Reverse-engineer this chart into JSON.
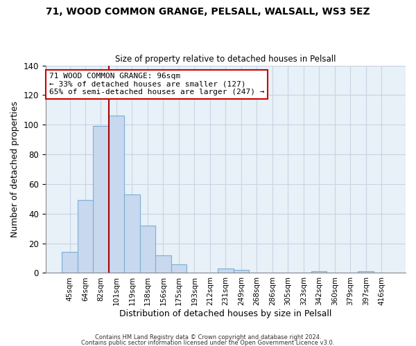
{
  "title": "71, WOOD COMMON GRANGE, PELSALL, WALSALL, WS3 5EZ",
  "subtitle": "Size of property relative to detached houses in Pelsall",
  "xlabel": "Distribution of detached houses by size in Pelsall",
  "ylabel": "Number of detached properties",
  "categories": [
    "45sqm",
    "64sqm",
    "82sqm",
    "101sqm",
    "119sqm",
    "138sqm",
    "156sqm",
    "175sqm",
    "193sqm",
    "212sqm",
    "231sqm",
    "249sqm",
    "268sqm",
    "286sqm",
    "305sqm",
    "323sqm",
    "342sqm",
    "360sqm",
    "379sqm",
    "397sqm",
    "416sqm"
  ],
  "values": [
    14,
    49,
    99,
    106,
    53,
    32,
    12,
    6,
    0,
    0,
    3,
    2,
    0,
    0,
    0,
    0,
    1,
    0,
    0,
    1,
    0
  ],
  "bar_color": "#c8d8ee",
  "bar_edge_color": "#7bafd4",
  "plot_bg_color": "#e8f0f8",
  "ylim": [
    0,
    140
  ],
  "yticks": [
    0,
    20,
    40,
    60,
    80,
    100,
    120,
    140
  ],
  "vline_color": "#aa0000",
  "annotation_title": "71 WOOD COMMON GRANGE: 96sqm",
  "annotation_line1": "← 33% of detached houses are smaller (127)",
  "annotation_line2": "65% of semi-detached houses are larger (247) →",
  "annotation_box_color": "#ffffff",
  "annotation_box_edge": "#cc0000",
  "footer1": "Contains HM Land Registry data © Crown copyright and database right 2024.",
  "footer2": "Contains public sector information licensed under the Open Government Licence v3.0.",
  "background_color": "#ffffff",
  "grid_color": "#c8d4e4"
}
